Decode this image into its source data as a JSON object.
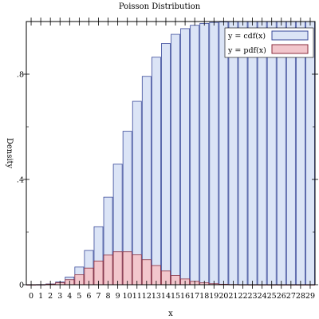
{
  "chart_data": {
    "type": "bar",
    "title": "Poisson Distribution",
    "xlabel": "x",
    "ylabel": "Density",
    "xlim": [
      -0.5,
      29.5
    ],
    "ylim": [
      0,
      1
    ],
    "y_ticks": [
      0,
      0.4,
      0.8
    ],
    "y_tick_labels": [
      "0",
      ".4",
      ".8"
    ],
    "categories": [
      0,
      1,
      2,
      3,
      4,
      5,
      6,
      7,
      8,
      9,
      10,
      11,
      12,
      13,
      14,
      15,
      16,
      17,
      18,
      19,
      20,
      21,
      22,
      23,
      24,
      25,
      26,
      27,
      28,
      29
    ],
    "legend": {
      "placement": "top-right"
    },
    "colors": {
      "cdf_fill": "#dbe4f6",
      "cdf_stroke": "#3a4a9a",
      "pdf_fill": "#f2c6cc",
      "pdf_stroke": "#8a2e3e"
    },
    "series": [
      {
        "name": "y = cdf(x)",
        "values": [
          0.0,
          0.0005,
          0.0028,
          0.0103,
          0.0293,
          0.0671,
          0.1301,
          0.2202,
          0.3328,
          0.4579,
          0.583,
          0.6968,
          0.7916,
          0.8645,
          0.9165,
          0.9513,
          0.973,
          0.9857,
          0.9928,
          0.9965,
          0.9984,
          0.9993,
          0.9997,
          0.9999,
          1.0,
          1.0,
          1.0,
          1.0,
          1.0,
          1.0
        ]
      },
      {
        "name": "y = pdf(x)",
        "values": [
          0.0,
          0.0005,
          0.0023,
          0.0076,
          0.0189,
          0.0378,
          0.0631,
          0.0901,
          0.1126,
          0.1251,
          0.1251,
          0.1137,
          0.0948,
          0.0729,
          0.0521,
          0.0347,
          0.0217,
          0.0128,
          0.0071,
          0.0037,
          0.0019,
          0.0009,
          0.0004,
          0.0002,
          0.0001,
          0.0,
          0.0,
          0.0,
          0.0,
          0.0
        ]
      }
    ]
  }
}
